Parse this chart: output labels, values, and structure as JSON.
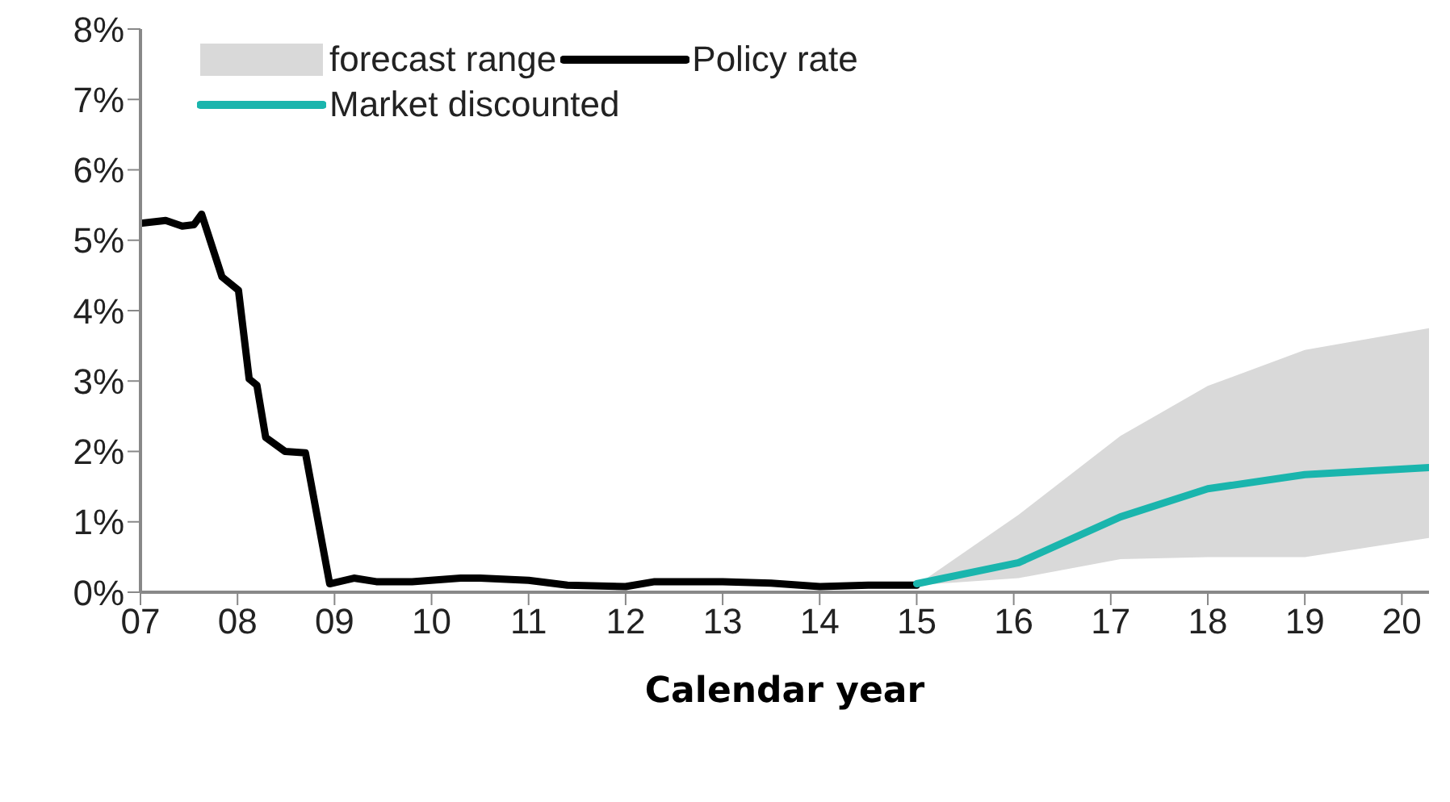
{
  "chart_data": {
    "xlabel": "Calendar year",
    "annotations": [
      "forecast range"
    ],
    "xlim": [
      7,
      20.28
    ],
    "xticks": [
      {
        "value": 7,
        "label": "07"
      },
      {
        "value": 8,
        "label": "08"
      },
      {
        "value": 9,
        "label": "09"
      },
      {
        "value": 10,
        "label": "10"
      },
      {
        "value": 11,
        "label": "11"
      },
      {
        "value": 12,
        "label": "12"
      },
      {
        "value": 13,
        "label": "13"
      },
      {
        "value": 14,
        "label": "14"
      },
      {
        "value": 15,
        "label": "15"
      },
      {
        "value": 16,
        "label": "16"
      },
      {
        "value": 17,
        "label": "17"
      },
      {
        "value": 18,
        "label": "18"
      },
      {
        "value": 19,
        "label": "19"
      },
      {
        "value": 20,
        "label": "20"
      }
    ],
    "ylim": [
      0,
      8
    ],
    "yticks": [
      {
        "value": 0,
        "label": "0%"
      },
      {
        "value": 1,
        "label": "1%"
      },
      {
        "value": 2,
        "label": "2%"
      },
      {
        "value": 3,
        "label": "3%"
      },
      {
        "value": 4,
        "label": "4%"
      },
      {
        "value": 5,
        "label": "5%"
      },
      {
        "value": 6,
        "label": "6%"
      },
      {
        "value": 7,
        "label": "7%"
      },
      {
        "value": 8,
        "label": "8%"
      }
    ],
    "grid": false,
    "legend": "top",
    "marker": "none",
    "type": "line",
    "series": [
      {
        "name": "Policy rate",
        "color": "#000000",
        "x": [
          7,
          7.26,
          7.43,
          7.55,
          7.63,
          7.84,
          8.01,
          8.12,
          8.2,
          8.29,
          8.49,
          8.7,
          8.95,
          9.2,
          9.43,
          9.8,
          10.3,
          10.5,
          11,
          11.4,
          12,
          12.3,
          13,
          13.5,
          14,
          14.5,
          15
        ],
        "values": [
          5.24,
          5.28,
          5.2,
          5.22,
          5.37,
          4.48,
          4.29,
          3.03,
          2.94,
          2.2,
          2,
          1.98,
          0.12,
          0.2,
          0.15,
          0.15,
          0.2,
          0.2,
          0.17,
          0.1,
          0.08,
          0.15,
          0.15,
          0.13,
          0.08,
          0.1,
          0.1
        ]
      },
      {
        "name": "Market discounted",
        "color": "#1ab5ad",
        "x": [
          15,
          16.05,
          17.1,
          18,
          19,
          20.28
        ],
        "values": [
          0.12,
          0.42,
          1.07,
          1.47,
          1.67,
          1.77
        ],
        "lower": [
          0.1,
          0.2,
          0.47,
          0.5,
          0.5,
          0.77
        ],
        "upper": [
          0.1,
          1.1,
          2.22,
          2.93,
          3.44,
          3.75
        ]
      }
    ]
  }
}
